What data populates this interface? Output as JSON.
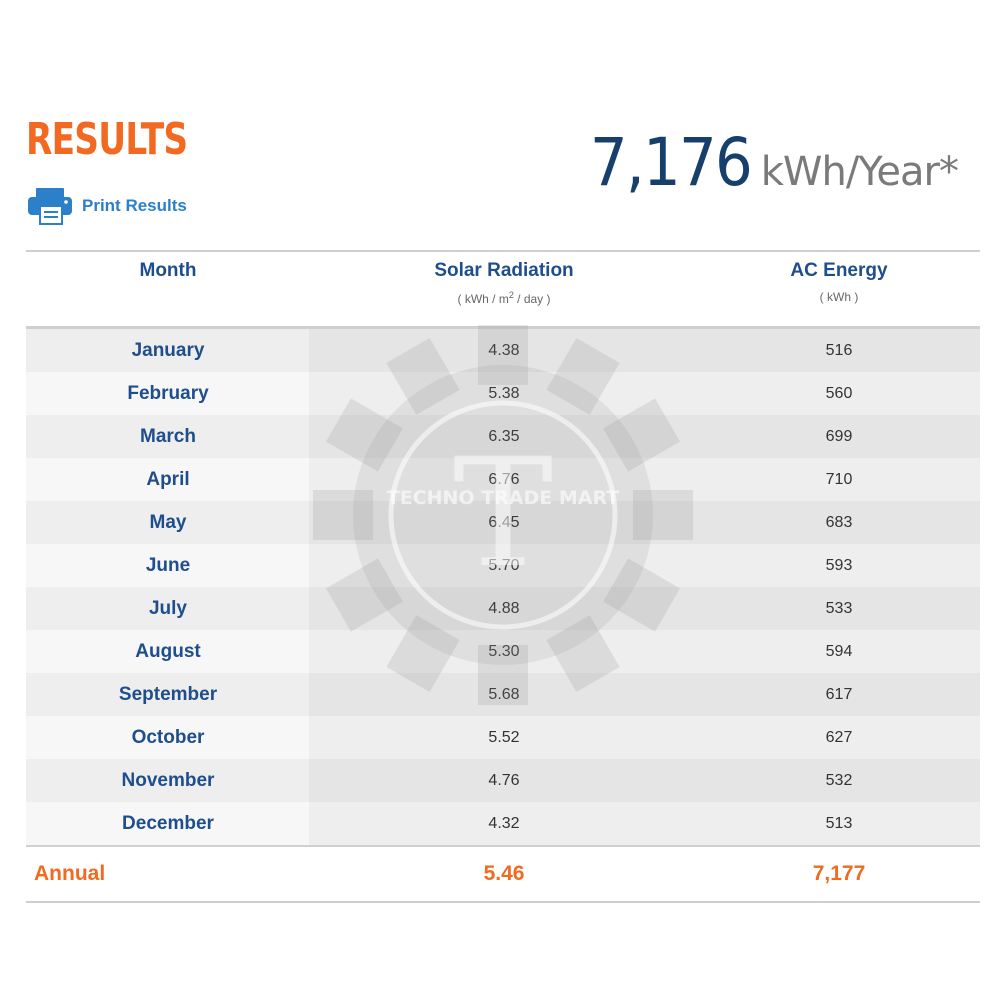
{
  "header": {
    "title": "RESULTS",
    "print_label": "Print Results",
    "total_value": "7,176",
    "total_unit": "kWh/Year*"
  },
  "table": {
    "columns": {
      "month": "Month",
      "solar_title": "Solar Radiation",
      "solar_unit_pre": "( kWh / m",
      "solar_unit_sup": "2",
      "solar_unit_post": " / day )",
      "ac_title": "AC Energy",
      "ac_unit": "( kWh )"
    },
    "rows": [
      {
        "month": "January",
        "solar": "4.38",
        "ac": "516"
      },
      {
        "month": "February",
        "solar": "5.38",
        "ac": "560"
      },
      {
        "month": "March",
        "solar": "6.35",
        "ac": "699"
      },
      {
        "month": "April",
        "solar": "6.76",
        "ac": "710"
      },
      {
        "month": "May",
        "solar": "6.45",
        "ac": "683"
      },
      {
        "month": "June",
        "solar": "5.70",
        "ac": "593"
      },
      {
        "month": "July",
        "solar": "4.88",
        "ac": "533"
      },
      {
        "month": "August",
        "solar": "5.30",
        "ac": "594"
      },
      {
        "month": "September",
        "solar": "5.68",
        "ac": "617"
      },
      {
        "month": "October",
        "solar": "5.52",
        "ac": "627"
      },
      {
        "month": "November",
        "solar": "4.76",
        "ac": "532"
      },
      {
        "month": "December",
        "solar": "4.32",
        "ac": "513"
      }
    ],
    "annual": {
      "label": "Annual",
      "solar": "5.46",
      "ac": "7,177"
    }
  },
  "watermark": {
    "text": "TECHNO TRADE MART",
    "letter": "T"
  },
  "colors": {
    "accent": "#f26a21",
    "heading_blue": "#1f4e8c",
    "total_navy": "#173f6b",
    "link_blue": "#2c7fc9"
  },
  "icons": {
    "print": "printer-icon"
  }
}
